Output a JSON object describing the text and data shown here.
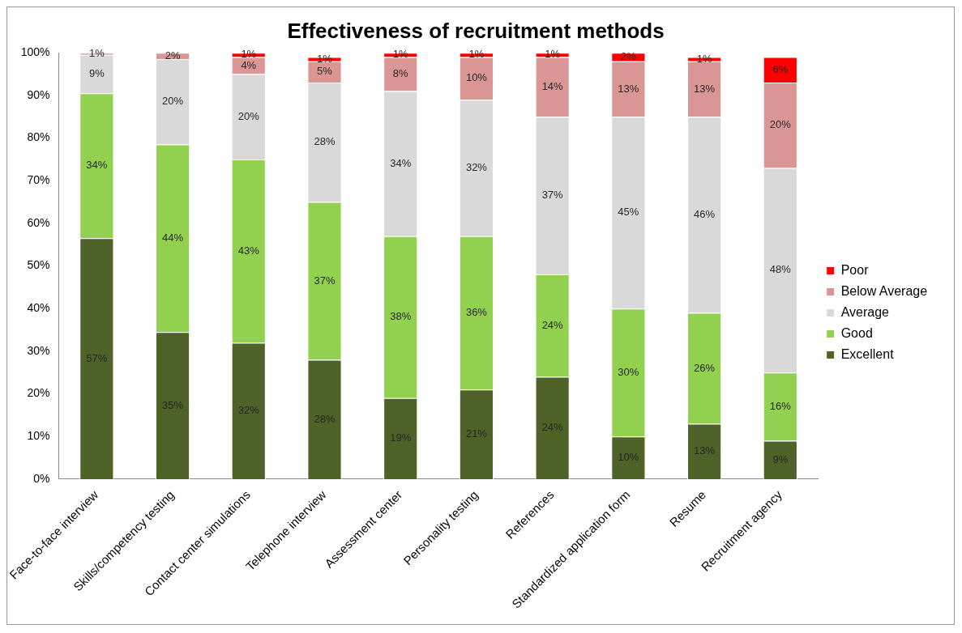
{
  "chart_data": {
    "type": "bar",
    "stacked": true,
    "title": "Effectiveness of recruitment methods",
    "categories": [
      "Face-to-face interview",
      "Skills/competency testing",
      "Contact center simulations",
      "Telephone interview",
      "Assessment center",
      "Personality testing",
      "References",
      "Standardized application form",
      "Resume",
      "Recruitment agency"
    ],
    "series": [
      {
        "name": "Excellent",
        "color": "#4f6228",
        "values": [
          56.5,
          34.5,
          32,
          28,
          19,
          21,
          24,
          10,
          13,
          9
        ],
        "value_labels": [
          "57%",
          "35%",
          "32%",
          "28%",
          "19%",
          "21%",
          "24%",
          "10%",
          "13%",
          "9%"
        ]
      },
      {
        "name": "Good",
        "color": "#92d050",
        "values": [
          34,
          44,
          43,
          37,
          38,
          36,
          24,
          30,
          26,
          16
        ],
        "value_labels": [
          "34%",
          "44%",
          "43%",
          "37%",
          "38%",
          "36%",
          "24%",
          "30%",
          "26%",
          "16%"
        ]
      },
      {
        "name": "Average",
        "color": "#d9d9d9",
        "values": [
          9,
          20,
          20,
          28,
          34,
          32,
          37,
          45,
          46,
          48
        ],
        "value_labels": [
          "9%",
          "20%",
          "20%",
          "28%",
          "34%",
          "32%",
          "37%",
          "45%",
          "46%",
          "48%"
        ]
      },
      {
        "name": "Below Average",
        "color": "#da9694",
        "values": [
          0.5,
          1.5,
          4,
          5,
          8,
          10,
          14,
          13,
          13,
          20
        ],
        "value_labels": [
          "1%",
          "2%",
          "4%",
          "5%",
          "8%",
          "10%",
          "14%",
          "13%",
          "13%",
          "20%"
        ]
      },
      {
        "name": "Poor",
        "color": "#ff0000",
        "values": [
          null,
          null,
          1,
          1,
          1,
          1,
          1,
          2,
          1,
          6
        ],
        "value_labels": [
          null,
          null,
          "1%",
          "1%",
          "1%",
          "1%",
          "1%",
          "2%",
          "1%",
          "6%"
        ]
      }
    ],
    "ylim": [
      0,
      100
    ],
    "yticks": [
      {
        "value": 0,
        "label": "0%"
      },
      {
        "value": 10,
        "label": "10%"
      },
      {
        "value": 20,
        "label": "20%"
      },
      {
        "value": 30,
        "label": "30%"
      },
      {
        "value": 40,
        "label": "40%"
      },
      {
        "value": 50,
        "label": "50%"
      },
      {
        "value": 60,
        "label": "60%"
      },
      {
        "value": 70,
        "label": "70%"
      },
      {
        "value": 80,
        "label": "80%"
      },
      {
        "value": 90,
        "label": "90%"
      },
      {
        "value": 100,
        "label": "100%"
      }
    ],
    "grid": false,
    "legend": "right"
  }
}
